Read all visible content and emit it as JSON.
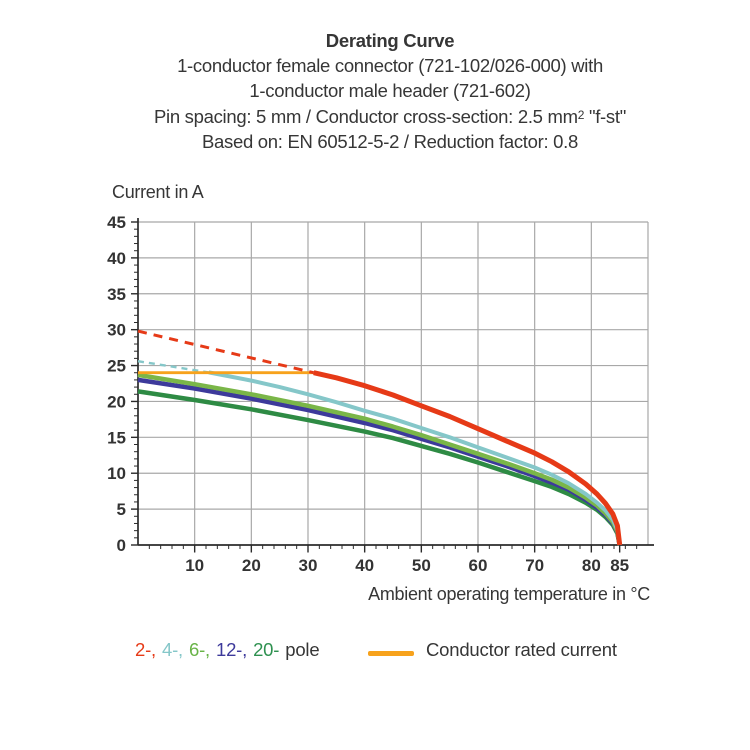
{
  "title": {
    "line1": "Derating Curve",
    "line2": "1-conductor female connector (721-102/026-000) with",
    "line3": "1-conductor male header (721-602)",
    "line4_pre": "Pin spacing: 5 mm / Conductor cross-section: 2.5 mm",
    "line4_sup": "2",
    "line4_post": " \"f-st\"",
    "line5": "Based on: EN 60512-5-2 / Reduction factor: 0.8"
  },
  "y_axis_title": "Current in A",
  "x_axis_title": "Ambient operating temperature in °C",
  "legend": {
    "poles": [
      {
        "label": "2-,",
        "color": "#e63a17"
      },
      {
        "label": "4-,",
        "color": "#85c7c9"
      },
      {
        "label": "6-,",
        "color": "#68b346"
      },
      {
        "label": "12-,",
        "color": "#3d3a9b"
      },
      {
        "label": "20-",
        "color": "#2e9150"
      }
    ],
    "poles_suffix": "pole",
    "rated_label": "Conductor rated current",
    "rated_color": "#f7a21c"
  },
  "chart_data": {
    "type": "line",
    "title": "Derating Curve",
    "xlabel": "Ambient operating temperature in °C",
    "ylabel": "Current in A",
    "xlim": [
      0,
      90
    ],
    "ylim": [
      0,
      45
    ],
    "x_major_step": 10,
    "x_minor_step": 2,
    "y_major_step": 5,
    "y_minor_step": 1,
    "x_tick_labels": [
      10,
      20,
      30,
      40,
      50,
      60,
      70,
      80,
      85
    ],
    "y_tick_labels": [
      0,
      5,
      10,
      15,
      20,
      25,
      30,
      35,
      40,
      45
    ],
    "grid": true,
    "grid_color": "#a8a8a8",
    "axis_color": "#2b2b2b",
    "series": [
      {
        "name": "20-pole",
        "color": "#2e8b44",
        "width": 4.5,
        "dash": null,
        "points": [
          [
            0,
            21.4
          ],
          [
            10,
            20.2
          ],
          [
            20,
            18.9
          ],
          [
            30,
            17.4
          ],
          [
            40,
            15.8
          ],
          [
            45,
            14.9
          ],
          [
            50,
            13.8
          ],
          [
            55,
            12.7
          ],
          [
            60,
            11.5
          ],
          [
            65,
            10.2
          ],
          [
            70,
            8.9
          ],
          [
            73,
            8.1
          ],
          [
            76,
            7.1
          ],
          [
            79,
            5.9
          ],
          [
            81,
            4.9
          ],
          [
            82.5,
            3.9
          ],
          [
            83.8,
            2.8
          ],
          [
            84.6,
            1.6
          ],
          [
            85,
            0
          ]
        ]
      },
      {
        "name": "12-pole",
        "color": "#3d3a9b",
        "width": 4.5,
        "dash": null,
        "points": [
          [
            0,
            23.0
          ],
          [
            10,
            21.8
          ],
          [
            20,
            20.4
          ],
          [
            30,
            18.8
          ],
          [
            40,
            17.0
          ],
          [
            45,
            16.0
          ],
          [
            50,
            14.8
          ],
          [
            55,
            13.6
          ],
          [
            60,
            12.3
          ],
          [
            65,
            11.0
          ],
          [
            70,
            9.6
          ],
          [
            73,
            8.7
          ],
          [
            76,
            7.7
          ],
          [
            79,
            6.3
          ],
          [
            81,
            5.2
          ],
          [
            82.5,
            4.2
          ],
          [
            83.8,
            3.0
          ],
          [
            84.6,
            1.8
          ],
          [
            85,
            0
          ]
        ]
      },
      {
        "name": "6-pole",
        "color": "#7ab648",
        "width": 4.5,
        "dash": null,
        "points": [
          [
            0,
            23.7
          ],
          [
            10,
            22.4
          ],
          [
            20,
            21.0
          ],
          [
            30,
            19.4
          ],
          [
            40,
            17.6
          ],
          [
            45,
            16.5
          ],
          [
            50,
            15.3
          ],
          [
            55,
            14.0
          ],
          [
            60,
            12.7
          ],
          [
            65,
            11.4
          ],
          [
            70,
            10.0
          ],
          [
            73,
            9.1
          ],
          [
            76,
            8.0
          ],
          [
            79,
            6.6
          ],
          [
            81,
            5.5
          ],
          [
            82.5,
            4.4
          ],
          [
            83.8,
            3.2
          ],
          [
            84.6,
            1.9
          ],
          [
            85,
            0
          ]
        ]
      },
      {
        "name": "4-pole",
        "color": "#85c7c9",
        "width": 4,
        "dash": null,
        "points": [
          [
            12.5,
            24.05
          ],
          [
            20,
            22.9
          ],
          [
            25,
            22.0
          ],
          [
            30,
            21.0
          ],
          [
            35,
            19.9
          ],
          [
            40,
            18.7
          ],
          [
            45,
            17.6
          ],
          [
            50,
            16.3
          ],
          [
            55,
            15.0
          ],
          [
            60,
            13.6
          ],
          [
            65,
            12.2
          ],
          [
            70,
            10.8
          ],
          [
            73,
            9.8
          ],
          [
            76,
            8.6
          ],
          [
            79,
            7.1
          ],
          [
            81,
            5.9
          ],
          [
            82.5,
            4.8
          ],
          [
            83.8,
            3.5
          ],
          [
            84.6,
            2.1
          ],
          [
            85,
            0
          ]
        ]
      },
      {
        "name": "4-pole-above-rated",
        "color": "#85c7c9",
        "width": 2.4,
        "dash": "6,5",
        "points": [
          [
            0,
            25.6
          ],
          [
            12.5,
            24.05
          ]
        ]
      },
      {
        "name": "conductor-rated-current",
        "color": "#f7a21c",
        "width": 2.8,
        "dash": null,
        "points": [
          [
            0,
            24
          ],
          [
            31,
            24
          ]
        ]
      },
      {
        "name": "2-pole",
        "color": "#e63a17",
        "width": 5,
        "dash": null,
        "points": [
          [
            31,
            24
          ],
          [
            35,
            23.3
          ],
          [
            40,
            22.2
          ],
          [
            45,
            20.9
          ],
          [
            50,
            19.4
          ],
          [
            55,
            17.9
          ],
          [
            60,
            16.2
          ],
          [
            65,
            14.5
          ],
          [
            70,
            12.8
          ],
          [
            73,
            11.6
          ],
          [
            76,
            10.2
          ],
          [
            79,
            8.5
          ],
          [
            81,
            7.1
          ],
          [
            82.5,
            5.8
          ],
          [
            83.8,
            4.3
          ],
          [
            84.6,
            2.7
          ],
          [
            85,
            0
          ]
        ]
      },
      {
        "name": "2-pole-above-rated",
        "color": "#e63a17",
        "width": 3,
        "dash": "9,7",
        "points": [
          [
            0,
            29.8
          ],
          [
            31,
            24
          ]
        ]
      }
    ]
  }
}
